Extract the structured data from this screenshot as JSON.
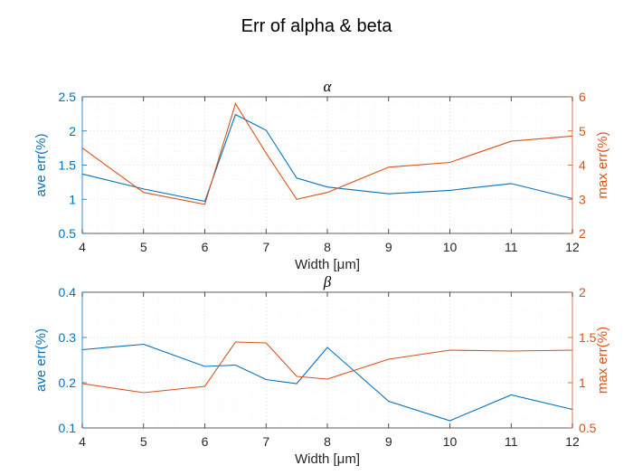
{
  "figure_title": "Err of alpha & beta",
  "colors": {
    "left": "#0072BD",
    "right": "#D95319",
    "axis": "#262626",
    "grid": "#e6e6e6"
  },
  "chart_data": [
    {
      "type": "line",
      "title": "α",
      "xlabel": "Width [μm]",
      "ylabel_left": "ave err(%)",
      "ylabel_right": "max err(%)",
      "xlim": [
        4,
        12
      ],
      "ylim_left": [
        0.5,
        2.5
      ],
      "ylim_right": [
        2,
        6
      ],
      "xticks": [
        "4",
        "5",
        "6",
        "7",
        "8",
        "9",
        "10",
        "11",
        "12"
      ],
      "yticks_left": [
        "0.5",
        "1",
        "1.5",
        "2",
        "2.5"
      ],
      "yticks_right": [
        "2",
        "3",
        "4",
        "5",
        "6"
      ],
      "grid": true,
      "x": [
        4,
        5,
        6,
        6.5,
        7,
        7.5,
        8,
        9,
        10,
        11,
        12
      ],
      "series": [
        {
          "axis": "left",
          "values": [
            1.37,
            1.15,
            0.97,
            2.24,
            2.01,
            1.31,
            1.18,
            1.08,
            1.13,
            1.23,
            1.01
          ]
        },
        {
          "axis": "right",
          "values": [
            4.5,
            3.2,
            2.85,
            5.8,
            4.35,
            3.0,
            3.2,
            3.94,
            4.08,
            4.7,
            4.85
          ]
        }
      ]
    },
    {
      "type": "line",
      "title": "β",
      "xlabel": "Width [μm]",
      "ylabel_left": "ave err(%)",
      "ylabel_right": "max err(%)",
      "xlim": [
        4,
        12
      ],
      "ylim_left": [
        0.1,
        0.4
      ],
      "ylim_right": [
        0.5,
        2
      ],
      "xticks": [
        "4",
        "5",
        "6",
        "7",
        "8",
        "9",
        "10",
        "11",
        "12"
      ],
      "yticks_left": [
        "0.1",
        "0.2",
        "0.3",
        "0.4"
      ],
      "yticks_right": [
        "0.5",
        "1",
        "1.5",
        "2"
      ],
      "grid": true,
      "x": [
        4,
        5,
        6,
        6.5,
        7,
        7.5,
        8,
        9,
        10,
        11,
        12
      ],
      "series": [
        {
          "axis": "left",
          "values": [
            0.273,
            0.285,
            0.236,
            0.239,
            0.207,
            0.198,
            0.278,
            0.159,
            0.116,
            0.173,
            0.141
          ]
        },
        {
          "axis": "right",
          "values": [
            0.99,
            0.89,
            0.96,
            1.45,
            1.44,
            1.07,
            1.04,
            1.26,
            1.36,
            1.35,
            1.36
          ]
        }
      ]
    }
  ]
}
